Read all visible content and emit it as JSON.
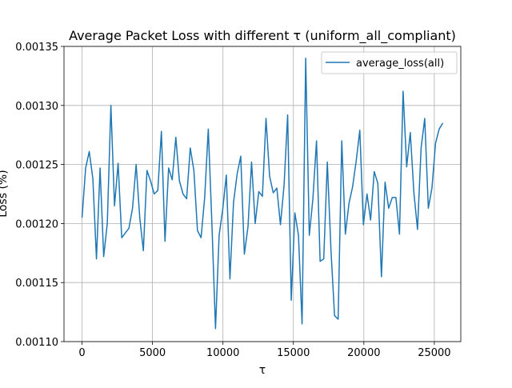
{
  "chart_data": {
    "type": "line",
    "title": "Average Packet Loss with different τ (uniform_all_compliant)",
    "xlabel": "τ",
    "ylabel": "Loss (%)",
    "xlim": [
      -1280,
      26880
    ],
    "ylim": [
      0.0011,
      0.00135
    ],
    "xticks": [
      0,
      5000,
      10000,
      15000,
      20000,
      25000
    ],
    "xtick_labels": [
      "0",
      "5000",
      "10000",
      "15000",
      "20000",
      "25000"
    ],
    "yticks": [
      0.0011,
      0.00115,
      0.0012,
      0.00125,
      0.0013,
      0.00135
    ],
    "ytick_labels": [
      "0.00110",
      "0.00115",
      "0.00120",
      "0.00125",
      "0.00130",
      "0.00135"
    ],
    "grid": true,
    "legend_position": "upper right",
    "series": [
      {
        "name": "average_loss(all)",
        "color": "#1f77b4",
        "x": [
          0,
          256,
          512,
          768,
          1024,
          1280,
          1536,
          1792,
          2048,
          2304,
          2560,
          2816,
          3072,
          3328,
          3584,
          3840,
          4096,
          4352,
          4608,
          4864,
          5120,
          5376,
          5632,
          5888,
          6144,
          6400,
          6656,
          6912,
          7168,
          7424,
          7680,
          7936,
          8192,
          8448,
          8704,
          8960,
          9216,
          9472,
          9728,
          9984,
          10240,
          10496,
          10752,
          11008,
          11264,
          11520,
          11776,
          12032,
          12288,
          12544,
          12800,
          13056,
          13312,
          13568,
          13824,
          14080,
          14336,
          14592,
          14848,
          15104,
          15360,
          15616,
          15872,
          16128,
          16384,
          16640,
          16896,
          17152,
          17408,
          17664,
          17920,
          18176,
          18432,
          18688,
          18944,
          19200,
          19456,
          19712,
          19968,
          20224,
          20480,
          20736,
          20992,
          21248,
          21504,
          21760,
          22016,
          22272,
          22528,
          22784,
          23040,
          23296,
          23552,
          23808,
          24064,
          24320,
          24576,
          24832,
          25088,
          25344,
          25600
        ],
        "y": [
          0.001205,
          0.001247,
          0.001261,
          0.001238,
          0.00117,
          0.001247,
          0.001172,
          0.0012,
          0.0013,
          0.001215,
          0.001251,
          0.001188,
          0.001192,
          0.001196,
          0.001213,
          0.00125,
          0.001205,
          0.001177,
          0.001245,
          0.001236,
          0.001225,
          0.001228,
          0.001278,
          0.001185,
          0.001247,
          0.001237,
          0.001273,
          0.001236,
          0.001225,
          0.001221,
          0.001264,
          0.001245,
          0.001194,
          0.001188,
          0.001222,
          0.00128,
          0.0012,
          0.001111,
          0.00119,
          0.001212,
          0.001241,
          0.001153,
          0.001218,
          0.001242,
          0.001257,
          0.001174,
          0.001197,
          0.001252,
          0.0012,
          0.001227,
          0.001223,
          0.001289,
          0.00124,
          0.001226,
          0.00123,
          0.001199,
          0.001232,
          0.001292,
          0.001135,
          0.001209,
          0.00119,
          0.001115,
          0.00134,
          0.00119,
          0.001221,
          0.00127,
          0.001168,
          0.00117,
          0.001252,
          0.001178,
          0.001122,
          0.001119,
          0.00127,
          0.001191,
          0.001217,
          0.001231,
          0.001253,
          0.001279,
          0.001199,
          0.001225,
          0.001203,
          0.001244,
          0.001234,
          0.001155,
          0.001235,
          0.001213,
          0.001222,
          0.001222,
          0.001191,
          0.001312,
          0.001248,
          0.001277,
          0.001226,
          0.001195,
          0.001264,
          0.001289,
          0.001213,
          0.00123,
          0.001268,
          0.00128,
          0.001285
        ]
      }
    ]
  }
}
